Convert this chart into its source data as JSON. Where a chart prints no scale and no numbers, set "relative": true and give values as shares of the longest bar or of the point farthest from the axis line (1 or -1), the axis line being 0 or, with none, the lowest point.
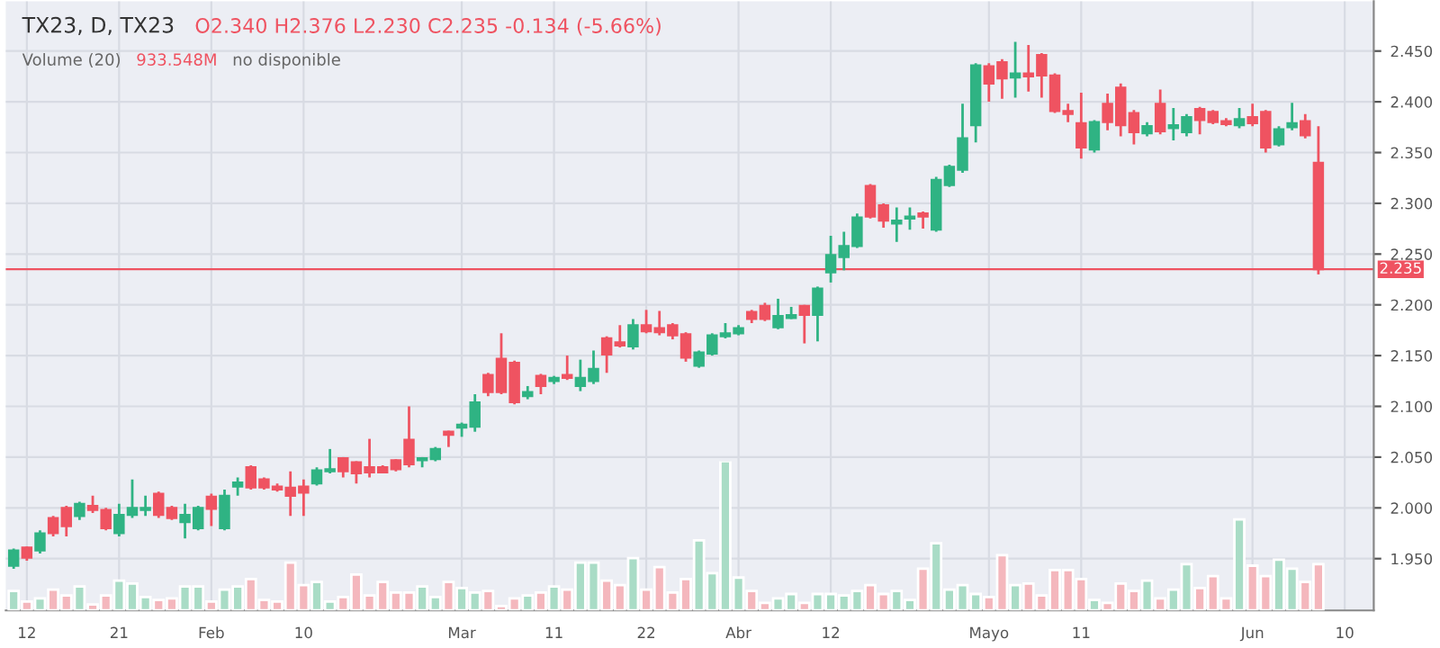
{
  "chart_data": [
    {
      "type": "candlestick",
      "title": "TX23, D, TX23",
      "subtitle": "O2.340 H2.376 L2.230 C2.235 -0.134 (-5.66%)",
      "annotations": [
        "Volume (20)",
        "933.548M",
        "no disponible"
      ],
      "categories": [
        null,
        "12",
        null,
        null,
        null,
        null,
        null,
        null,
        "21",
        null,
        null,
        null,
        null,
        null,
        null,
        "Feb",
        null,
        null,
        null,
        null,
        null,
        null,
        "10",
        null,
        null,
        null,
        null,
        null,
        null,
        null,
        null,
        null,
        null,
        null,
        "Mar",
        null,
        null,
        null,
        null,
        null,
        null,
        "11",
        null,
        null,
        null,
        null,
        null,
        null,
        "22",
        null,
        null,
        null,
        null,
        null,
        null,
        "Abr",
        null,
        null,
        null,
        null,
        null,
        null,
        "12",
        null,
        null,
        null,
        null,
        null,
        null,
        null,
        null,
        null,
        null,
        null,
        "Mayo",
        null,
        null,
        null,
        null,
        null,
        null,
        "11",
        null,
        null,
        null,
        null,
        null,
        null,
        null,
        null,
        null,
        null,
        null,
        null,
        "Jun",
        null,
        null,
        null,
        null,
        null,
        null,
        "10"
      ],
      "ohlc": [
        [
          1.943,
          1.96,
          1.94,
          1.958
        ],
        [
          1.961,
          1.962,
          1.948,
          1.951
        ],
        [
          1.958,
          1.978,
          1.955,
          1.975
        ],
        [
          1.99,
          1.992,
          1.972,
          1.975
        ],
        [
          2.0,
          2.002,
          1.972,
          1.982
        ],
        [
          1.992,
          2.006,
          1.988,
          2.004
        ],
        [
          2.002,
          2.012,
          1.995,
          1.998
        ],
        [
          1.998,
          2.0,
          1.978,
          1.98
        ],
        [
          1.975,
          2.004,
          1.972,
          1.993
        ],
        [
          1.993,
          2.028,
          1.99,
          2.0
        ],
        [
          1.998,
          2.012,
          1.992,
          2.0
        ],
        [
          2.014,
          2.016,
          1.99,
          1.993
        ],
        [
          2.0,
          2.002,
          1.988,
          1.99
        ],
        [
          1.986,
          2.004,
          1.97,
          1.993
        ],
        [
          1.98,
          2.002,
          1.978,
          2.0
        ],
        [
          2.011,
          2.014,
          1.982,
          1.999
        ],
        [
          1.98,
          2.018,
          1.978,
          2.012
        ],
        [
          2.021,
          2.03,
          2.012,
          2.025
        ],
        [
          2.04,
          2.042,
          2.018,
          2.02
        ],
        [
          2.028,
          2.03,
          2.018,
          2.02
        ],
        [
          2.021,
          2.024,
          2.016,
          2.018
        ],
        [
          2.02,
          2.036,
          1.992,
          2.012
        ],
        [
          2.021,
          2.028,
          1.992,
          2.015
        ],
        [
          2.024,
          2.04,
          2.022,
          2.037
        ],
        [
          2.036,
          2.058,
          2.034,
          2.038
        ],
        [
          2.049,
          2.05,
          2.03,
          2.036
        ],
        [
          2.045,
          2.046,
          2.024,
          2.034
        ],
        [
          2.04,
          2.068,
          2.03,
          2.035
        ],
        [
          2.04,
          2.042,
          2.034,
          2.035
        ],
        [
          2.047,
          2.048,
          2.036,
          2.038
        ],
        [
          2.067,
          2.1,
          2.04,
          2.043
        ],
        [
          2.047,
          2.05,
          2.04,
          2.049
        ],
        [
          2.048,
          2.06,
          2.046,
          2.058
        ],
        [
          2.075,
          2.076,
          2.06,
          2.072
        ],
        [
          2.079,
          2.084,
          2.07,
          2.082
        ],
        [
          2.08,
          2.112,
          2.075,
          2.104
        ],
        [
          2.131,
          2.133,
          2.11,
          2.114
        ],
        [
          2.147,
          2.172,
          2.112,
          2.114
        ],
        [
          2.143,
          2.145,
          2.102,
          2.104
        ],
        [
          2.11,
          2.12,
          2.107,
          2.114
        ],
        [
          2.13,
          2.132,
          2.112,
          2.12
        ],
        [
          2.125,
          2.13,
          2.122,
          2.128
        ],
        [
          2.131,
          2.15,
          2.126,
          2.128
        ],
        [
          2.12,
          2.146,
          2.115,
          2.128
        ],
        [
          2.125,
          2.155,
          2.122,
          2.137
        ],
        [
          2.167,
          2.169,
          2.133,
          2.151
        ],
        [
          2.163,
          2.18,
          2.158,
          2.16
        ],
        [
          2.159,
          2.186,
          2.156,
          2.18
        ],
        [
          2.18,
          2.195,
          2.172,
          2.174
        ],
        [
          2.177,
          2.194,
          2.17,
          2.173
        ],
        [
          2.18,
          2.182,
          2.166,
          2.17
        ],
        [
          2.171,
          2.173,
          2.144,
          2.148
        ],
        [
          2.14,
          2.155,
          2.138,
          2.153
        ],
        [
          2.152,
          2.172,
          2.15,
          2.17
        ],
        [
          2.169,
          2.182,
          2.167,
          2.172
        ],
        [
          2.172,
          2.18,
          2.17,
          2.177
        ],
        [
          2.193,
          2.195,
          2.182,
          2.186
        ],
        [
          2.199,
          2.202,
          2.184,
          2.186
        ],
        [
          2.178,
          2.206,
          2.176,
          2.189
        ],
        [
          2.187,
          2.198,
          2.186,
          2.19
        ],
        [
          2.199,
          2.2,
          2.162,
          2.19
        ],
        [
          2.19,
          2.218,
          2.164,
          2.216
        ],
        [
          2.232,
          2.268,
          2.222,
          2.249
        ],
        [
          2.247,
          2.272,
          2.234,
          2.258
        ],
        [
          2.258,
          2.29,
          2.256,
          2.286
        ],
        [
          2.317,
          2.319,
          2.285,
          2.287
        ],
        [
          2.298,
          2.3,
          2.276,
          2.283
        ],
        [
          2.28,
          2.296,
          2.262,
          2.283
        ],
        [
          2.285,
          2.296,
          2.274,
          2.287
        ],
        [
          2.29,
          2.292,
          2.275,
          2.287
        ],
        [
          2.274,
          2.326,
          2.272,
          2.323
        ],
        [
          2.318,
          2.338,
          2.316,
          2.336
        ],
        [
          2.333,
          2.398,
          2.33,
          2.364
        ],
        [
          2.377,
          2.438,
          2.36,
          2.436
        ],
        [
          2.435,
          2.438,
          2.4,
          2.418
        ],
        [
          2.439,
          2.442,
          2.403,
          2.423
        ],
        [
          2.424,
          2.459,
          2.404,
          2.428
        ],
        [
          2.428,
          2.456,
          2.41,
          2.425
        ],
        [
          2.446,
          2.448,
          2.404,
          2.426
        ],
        [
          2.426,
          2.428,
          2.389,
          2.391
        ],
        [
          2.391,
          2.398,
          2.38,
          2.388
        ],
        [
          2.379,
          2.409,
          2.344,
          2.355
        ],
        [
          2.353,
          2.382,
          2.35,
          2.38
        ],
        [
          2.398,
          2.408,
          2.372,
          2.38
        ],
        [
          2.414,
          2.418,
          2.366,
          2.377
        ],
        [
          2.389,
          2.392,
          2.358,
          2.37
        ],
        [
          2.369,
          2.38,
          2.366,
          2.376
        ],
        [
          2.398,
          2.412,
          2.368,
          2.371
        ],
        [
          2.374,
          2.394,
          2.362,
          2.377
        ],
        [
          2.37,
          2.388,
          2.366,
          2.385
        ],
        [
          2.393,
          2.395,
          2.368,
          2.382
        ],
        [
          2.39,
          2.392,
          2.378,
          2.38
        ],
        [
          2.381,
          2.384,
          2.376,
          2.378
        ],
        [
          2.377,
          2.394,
          2.374,
          2.383
        ],
        [
          2.385,
          2.398,
          2.376,
          2.379
        ],
        [
          2.39,
          2.392,
          2.35,
          2.355
        ],
        [
          2.358,
          2.376,
          2.356,
          2.373
        ],
        [
          2.375,
          2.399,
          2.372,
          2.379
        ],
        [
          2.381,
          2.388,
          2.364,
          2.367
        ],
        [
          2.34,
          2.376,
          2.23,
          2.235
        ],
        null,
        null
      ],
      "colors": [
        "#2fb383",
        "#ef5361",
        "#2fb383",
        "#ef5361",
        "#ef5361",
        "#2fb383",
        "#ef5361",
        "#ef5361",
        "#2fb383",
        "#2fb383",
        "#2fb383",
        "#ef5361",
        "#ef5361",
        "#2fb383",
        "#2fb383",
        "#ef5361",
        "#2fb383",
        "#2fb383",
        "#ef5361",
        "#ef5361",
        "#ef5361",
        "#ef5361",
        "#ef5361",
        "#2fb383",
        "#2fb383",
        "#ef5361",
        "#ef5361",
        "#ef5361",
        "#ef5361",
        "#ef5361",
        "#ef5361",
        "#2fb383",
        "#2fb383",
        "#ef5361",
        "#2fb383",
        "#2fb383",
        "#ef5361",
        "#ef5361",
        "#ef5361",
        "#2fb383",
        "#ef5361",
        "#2fb383",
        "#ef5361",
        "#2fb383",
        "#2fb383",
        "#ef5361",
        "#ef5361",
        "#2fb383",
        "#ef5361",
        "#ef5361",
        "#ef5361",
        "#ef5361",
        "#2fb383",
        "#2fb383",
        "#2fb383",
        "#2fb383",
        "#ef5361",
        "#ef5361",
        "#2fb383",
        "#2fb383",
        "#ef5361",
        "#2fb383",
        "#2fb383",
        "#2fb383",
        "#2fb383",
        "#ef5361",
        "#ef5361",
        "#2fb383",
        "#2fb383",
        "#ef5361",
        "#2fb383",
        "#2fb383",
        "#2fb383",
        "#2fb383",
        "#ef5361",
        "#ef5361",
        "#2fb383",
        "#ef5361",
        "#ef5361",
        "#ef5361",
        "#ef5361",
        "#ef5361",
        "#2fb383",
        "#ef5361",
        "#ef5361",
        "#ef5361",
        "#2fb383",
        "#ef5361",
        "#2fb383",
        "#2fb383",
        "#ef5361",
        "#ef5361",
        "#ef5361",
        "#2fb383",
        "#ef5361",
        "#ef5361",
        "#2fb383",
        "#2fb383",
        "#ef5361",
        "#ef5361",
        null,
        null
      ],
      "ylim": [
        1.899,
        2.499
      ],
      "yticks": [
        {
          "value": 1.95,
          "label": "1.950"
        },
        {
          "value": 2.0,
          "label": "2.000"
        },
        {
          "value": 2.05,
          "label": "2.050"
        },
        {
          "value": 2.1,
          "label": "2.100"
        },
        {
          "value": 2.15,
          "label": "2.150"
        },
        {
          "value": 2.2,
          "label": "2.200"
        },
        {
          "value": 2.25,
          "label": "2.250"
        },
        {
          "value": 2.3,
          "label": "2.300"
        },
        {
          "value": 2.35,
          "label": "2.350"
        },
        {
          "value": 2.4,
          "label": "2.400"
        },
        {
          "value": 2.45,
          "label": "2.450"
        }
      ],
      "ref_lines": [
        {
          "axis": "y",
          "value": 2.235,
          "label": "2.235",
          "color": "#ef5361"
        }
      ],
      "grid": true
    },
    {
      "type": "bar",
      "relative": true,
      "categories": [
        null,
        null,
        null,
        null,
        null,
        null,
        null,
        null,
        null,
        null,
        null,
        null,
        null,
        null,
        null,
        null,
        null,
        null,
        null,
        null,
        null,
        null,
        null,
        null,
        null,
        null,
        null,
        null,
        null,
        null,
        null,
        null,
        null,
        null,
        null,
        null,
        null,
        null,
        null,
        null,
        null,
        null,
        null,
        null,
        null,
        null,
        null,
        null,
        null,
        null,
        null,
        null,
        null,
        null,
        null,
        null,
        null,
        null,
        null,
        null,
        null,
        null,
        null,
        null,
        null,
        null,
        null,
        null,
        null,
        null,
        null,
        null,
        null,
        null,
        null,
        null,
        null,
        null,
        null,
        null,
        null,
        null,
        null,
        null,
        null,
        null,
        null,
        null,
        null,
        null,
        null,
        null,
        null,
        null,
        null,
        null,
        null,
        null,
        null,
        null,
        null,
        null
      ],
      "values": [
        0.13,
        0.06,
        0.08,
        0.14,
        0.1,
        0.16,
        0.04,
        0.1,
        0.2,
        0.18,
        0.09,
        0.07,
        0.08,
        0.16,
        0.16,
        0.06,
        0.14,
        0.16,
        0.21,
        0.07,
        0.06,
        0.32,
        0.17,
        0.19,
        0.06,
        0.09,
        0.24,
        0.1,
        0.19,
        0.12,
        0.12,
        0.16,
        0.09,
        0.19,
        0.15,
        0.12,
        0.13,
        0.03,
        0.08,
        0.1,
        0.12,
        0.16,
        0.14,
        0.32,
        0.32,
        0.2,
        0.17,
        0.35,
        0.14,
        0.29,
        0.12,
        0.21,
        0.47,
        0.25,
        1,
        0.22,
        0.13,
        0.05,
        0.08,
        0.11,
        0.05,
        0.11,
        0.11,
        0.1,
        0.13,
        0.17,
        0.11,
        0.13,
        0.07,
        0.28,
        0.45,
        0.14,
        0.17,
        0.11,
        0.09,
        0.37,
        0.17,
        0.18,
        0.1,
        0.27,
        0.27,
        0.21,
        0.07,
        0.05,
        0.18,
        0.13,
        0.2,
        0.08,
        0.14,
        0.31,
        0.15,
        0.23,
        0.08,
        0.61,
        0.3,
        0.23,
        0.34,
        0.28,
        0.19,
        0.31,
        null,
        null
      ],
      "colors": [
        "#a9dcc6",
        "#f4b7bd",
        "#a9dcc6",
        "#f4b7bd",
        "#f4b7bd",
        "#a9dcc6",
        "#f4b7bd",
        "#f4b7bd",
        "#a9dcc6",
        "#a9dcc6",
        "#a9dcc6",
        "#f4b7bd",
        "#f4b7bd",
        "#a9dcc6",
        "#a9dcc6",
        "#f4b7bd",
        "#a9dcc6",
        "#a9dcc6",
        "#f4b7bd",
        "#f4b7bd",
        "#f4b7bd",
        "#f4b7bd",
        "#f4b7bd",
        "#a9dcc6",
        "#a9dcc6",
        "#f4b7bd",
        "#f4b7bd",
        "#f4b7bd",
        "#f4b7bd",
        "#f4b7bd",
        "#f4b7bd",
        "#a9dcc6",
        "#a9dcc6",
        "#f4b7bd",
        "#a9dcc6",
        "#a9dcc6",
        "#f4b7bd",
        "#f4b7bd",
        "#f4b7bd",
        "#a9dcc6",
        "#f4b7bd",
        "#a9dcc6",
        "#f4b7bd",
        "#a9dcc6",
        "#a9dcc6",
        "#f4b7bd",
        "#f4b7bd",
        "#a9dcc6",
        "#f4b7bd",
        "#f4b7bd",
        "#f4b7bd",
        "#f4b7bd",
        "#a9dcc6",
        "#a9dcc6",
        "#a9dcc6",
        "#a9dcc6",
        "#f4b7bd",
        "#f4b7bd",
        "#a9dcc6",
        "#a9dcc6",
        "#f4b7bd",
        "#a9dcc6",
        "#a9dcc6",
        "#a9dcc6",
        "#a9dcc6",
        "#f4b7bd",
        "#f4b7bd",
        "#a9dcc6",
        "#a9dcc6",
        "#f4b7bd",
        "#a9dcc6",
        "#a9dcc6",
        "#a9dcc6",
        "#a9dcc6",
        "#f4b7bd",
        "#f4b7bd",
        "#a9dcc6",
        "#f4b7bd",
        "#f4b7bd",
        "#f4b7bd",
        "#f4b7bd",
        "#f4b7bd",
        "#a9dcc6",
        "#f4b7bd",
        "#f4b7bd",
        "#f4b7bd",
        "#a9dcc6",
        "#f4b7bd",
        "#a9dcc6",
        "#a9dcc6",
        "#f4b7bd",
        "#f4b7bd",
        "#f4b7bd",
        "#a9dcc6",
        "#f4b7bd",
        "#f4b7bd",
        "#a9dcc6",
        "#a9dcc6",
        "#f4b7bd",
        "#f4b7bd",
        null,
        null
      ]
    }
  ]
}
